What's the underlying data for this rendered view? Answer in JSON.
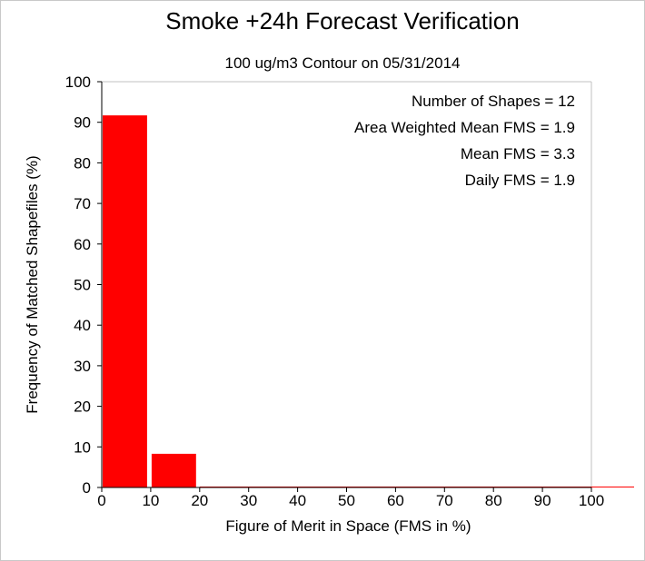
{
  "chart_data": {
    "type": "bar",
    "title": "Smoke +24h Forecast Verification",
    "subtitle": "100 ug/m3 Contour on 05/31/2014",
    "xlabel": "Figure of Merit in Space (FMS in %)",
    "ylabel": "Frequency of Matched Shapefiles (%)",
    "xlim": [
      0,
      100
    ],
    "ylim": [
      0,
      100
    ],
    "x_ticks": [
      0,
      10,
      20,
      30,
      40,
      50,
      60,
      70,
      80,
      90,
      100
    ],
    "y_ticks": [
      0,
      10,
      20,
      30,
      40,
      50,
      60,
      70,
      80,
      90,
      100
    ],
    "bins": [
      {
        "from": 0,
        "to": 10,
        "value": 91.7
      },
      {
        "from": 10,
        "to": 20,
        "value": 8.3
      },
      {
        "from": 20,
        "to": 30,
        "value": 0
      },
      {
        "from": 30,
        "to": 40,
        "value": 0
      },
      {
        "from": 40,
        "to": 50,
        "value": 0
      },
      {
        "from": 50,
        "to": 60,
        "value": 0
      },
      {
        "from": 60,
        "to": 70,
        "value": 0
      },
      {
        "from": 70,
        "to": 80,
        "value": 0
      },
      {
        "from": 80,
        "to": 90,
        "value": 0
      },
      {
        "from": 90,
        "to": 100,
        "value": 0
      },
      {
        "from": 100,
        "to": 110,
        "value": 0
      }
    ],
    "bar_color": "#ff0000",
    "grid": false,
    "annotations": [
      "Number of Shapes = 12",
      "Area Weighted Mean FMS = 1.9",
      "Mean FMS = 3.3",
      "Daily FMS = 1.9"
    ]
  }
}
